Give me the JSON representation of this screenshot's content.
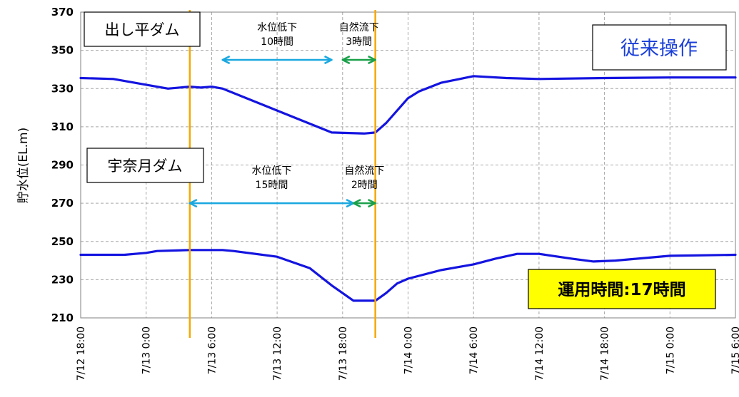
{
  "chart_data": {
    "type": "line",
    "ylabel": "貯水位(EL.m)",
    "ylim": [
      210,
      370
    ],
    "yticks": [
      210,
      230,
      250,
      270,
      290,
      310,
      330,
      350,
      370
    ],
    "xlim": [
      0,
      60
    ],
    "x_tick_labels": [
      "7/12 18:00",
      "7/13 0:00",
      "7/13 6:00",
      "7/13 12:00",
      "7/13 18:00",
      "7/14 0:00",
      "7/14 6:00",
      "7/14 12:00",
      "7/14 18:00",
      "7/15 0:00",
      "7/15 6:00"
    ],
    "grid": true,
    "line_color": "#1414e0",
    "marker_line_color": "#f5a800",
    "marker_lines": [
      "7/13 4:00",
      "7/13 21:00"
    ],
    "series": [
      {
        "name": "出し平ダム",
        "points": [
          [
            "7/12 18:00",
            335.5
          ],
          [
            "7/12 21:00",
            335.0
          ],
          [
            "7/13 0:00",
            332.0
          ],
          [
            "7/13 2:00",
            330.0
          ],
          [
            "7/13 4:00",
            331.0
          ],
          [
            "7/13 5:00",
            330.5
          ],
          [
            "7/13 6:00",
            331.0
          ],
          [
            "7/13 7:00",
            330.0
          ],
          [
            "7/13 17:00",
            307.0
          ],
          [
            "7/13 20:00",
            306.5
          ],
          [
            "7/13 21:00",
            307.0
          ],
          [
            "7/13 22:00",
            312.0
          ],
          [
            "7/14 0:00",
            325.0
          ],
          [
            "7/14 1:00",
            328.5
          ],
          [
            "7/14 3:00",
            333.0
          ],
          [
            "7/14 6:00",
            336.5
          ],
          [
            "7/14 9:00",
            335.5
          ],
          [
            "7/14 12:00",
            335.0
          ],
          [
            "7/14 18:00",
            335.5
          ],
          [
            "7/15 0:00",
            335.8
          ],
          [
            "7/15 6:00",
            335.8
          ]
        ]
      },
      {
        "name": "宇奈月ダム",
        "points": [
          [
            "7/12 18:00",
            243.0
          ],
          [
            "7/12 22:00",
            243.0
          ],
          [
            "7/13 0:00",
            244.0
          ],
          [
            "7/13 1:00",
            245.0
          ],
          [
            "7/13 4:00",
            245.5
          ],
          [
            "7/13 7:00",
            245.5
          ],
          [
            "7/13 8:00",
            245.0
          ],
          [
            "7/13 12:00",
            242.0
          ],
          [
            "7/13 15:00",
            236.0
          ],
          [
            "7/13 17:00",
            227.0
          ],
          [
            "7/13 19:00",
            219.0
          ],
          [
            "7/13 21:00",
            219.0
          ],
          [
            "7/13 22:00",
            223.0
          ],
          [
            "7/13 23:00",
            228.0
          ],
          [
            "7/14 0:00",
            230.5
          ],
          [
            "7/14 3:00",
            235.0
          ],
          [
            "7/14 6:00",
            238.0
          ],
          [
            "7/14 8:00",
            241.0
          ],
          [
            "7/14 10:00",
            243.5
          ],
          [
            "7/14 12:00",
            243.5
          ],
          [
            "7/14 15:00",
            241.0
          ],
          [
            "7/14 17:00",
            239.5
          ],
          [
            "7/14 19:00",
            240.0
          ],
          [
            "7/15 0:00",
            242.5
          ],
          [
            "7/15 6:00",
            243.0
          ]
        ]
      }
    ],
    "range_arrows": [
      {
        "from": "7/13 7:00",
        "to": "7/13 17:00",
        "y": 345,
        "color": "#1aa8e0",
        "label": [
          "水位低下",
          "10時間"
        ]
      },
      {
        "from": "7/13 18:00",
        "to": "7/13 21:00",
        "y": 345,
        "color": "#1aa04a",
        "label": [
          "自然流下",
          "3時間"
        ]
      },
      {
        "from": "7/13 4:00",
        "to": "7/13 19:00",
        "y": 270,
        "color": "#1aa8e0",
        "label": [
          "水位低下",
          "15時間"
        ]
      },
      {
        "from": "7/13 19:00",
        "to": "7/13 21:00",
        "y": 270,
        "color": "#1aa04a",
        "label": [
          "自然流下",
          "2時間"
        ]
      }
    ]
  },
  "dam_labels": {
    "upper": "出し平ダム",
    "lower": "宇奈月ダム"
  },
  "mode_label": "従来操作",
  "operation_label": "運用時間:17時間"
}
